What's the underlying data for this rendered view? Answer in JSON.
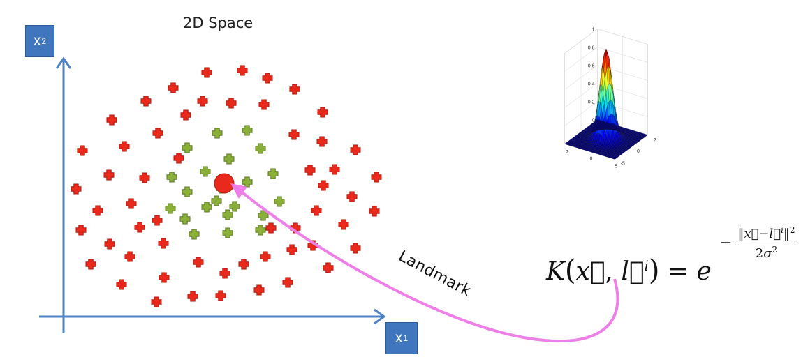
{
  "title": "2D Space",
  "axes": {
    "y_label": "x",
    "y_subscript": "2",
    "x_label": "x",
    "x_subscript": "1"
  },
  "annotation": {
    "landmark_label": "Landmark"
  },
  "formula": {
    "text": "K(x⃗, l⃗ⁱ) = e^(−‖x⃗ − l⃗ⁱ‖² / 2σ²)",
    "lhs": "K",
    "x_vec": "x⃗",
    "l_vec": "l⃗",
    "l_sup": "i",
    "base": "e",
    "two": "2",
    "sigma": "σ"
  },
  "surface_plot": {
    "type": "3d-surface",
    "z_ticks": [
      "0",
      "0.2",
      "0.4",
      "0.6",
      "0.8",
      "1"
    ],
    "x_ticks": [
      "-5",
      "0",
      "5"
    ],
    "y_ticks": [
      "-5",
      "0",
      "5"
    ]
  },
  "colors": {
    "red_point": "#e8291c",
    "green_point": "#8ab03a",
    "axis": "#4e82c5",
    "label_box": "#3f76bd",
    "arrow": "#ee7ee8",
    "landmark_circle": "#e8291c"
  }
}
